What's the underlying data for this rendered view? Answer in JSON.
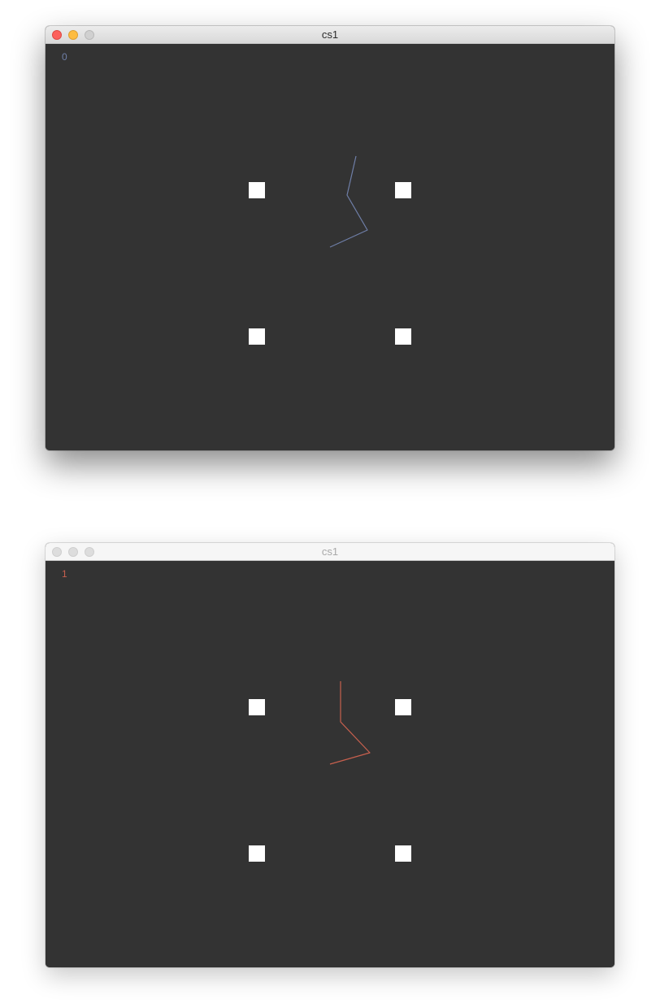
{
  "windows": [
    {
      "title": "cs1",
      "state": "active",
      "counter": "0",
      "trace_color": "#6f7fa8"
    },
    {
      "title": "cs1",
      "state": "inactive",
      "counter": "1",
      "trace_color": "#c8604e"
    }
  ],
  "colors": {
    "canvas_background": "#333333",
    "marker": "#ffffff",
    "close_button": "#fc605c",
    "minimize_button": "#fdbc40",
    "zoom_button": "#d0d0d0"
  },
  "icons": {
    "close": "close-icon",
    "minimize": "minimize-icon",
    "zoom": "zoom-icon"
  }
}
